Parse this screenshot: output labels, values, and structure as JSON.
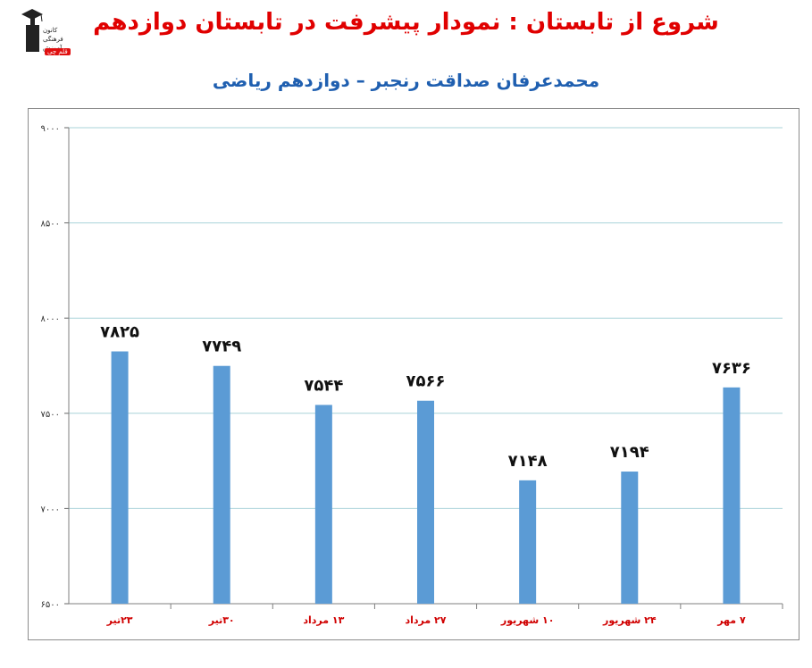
{
  "header": {
    "title": "شروع از تابستان : نمودار پیشرفت در تابستان دوازدهم",
    "subtitle": "محمدعرفان صداقت رنجبر – دوازدهم ریاضی"
  },
  "logo": {
    "icon": "graduate-icon",
    "lines": [
      "کانون",
      "فرهنگی",
      "آموزش"
    ],
    "badge": "قلم چی"
  },
  "colors": {
    "title": "#e00000",
    "subtitle": "#1f5fb0",
    "bar": "#5b9bd5",
    "category_label": "#d00000",
    "grid": "#a9d3d9"
  },
  "chart_data": {
    "type": "bar",
    "categories": [
      "۲۳تیر",
      "۳۰تیر",
      "۱۳ مرداد",
      "۲۷ مرداد",
      "۱۰ شهریور",
      "۲۴ شهریور",
      "۷ مهر"
    ],
    "values": [
      7825,
      7749,
      7544,
      7566,
      7148,
      7194,
      7636
    ],
    "value_labels": [
      "۷۸۲۵",
      "۷۷۴۹",
      "۷۵۴۴",
      "۷۵۶۶",
      "۷۱۴۸",
      "۷۱۹۴",
      "۷۶۳۶"
    ],
    "ylim": [
      6500,
      9000
    ],
    "yticks": [
      6500,
      7000,
      7500,
      8000,
      8500,
      9000
    ],
    "ytick_labels": [
      "۶۵۰۰",
      "۷۰۰۰",
      "۷۵۰۰",
      "۸۰۰۰",
      "۸۵۰۰",
      "۹۰۰۰"
    ],
    "grid": true,
    "legend": "none"
  }
}
